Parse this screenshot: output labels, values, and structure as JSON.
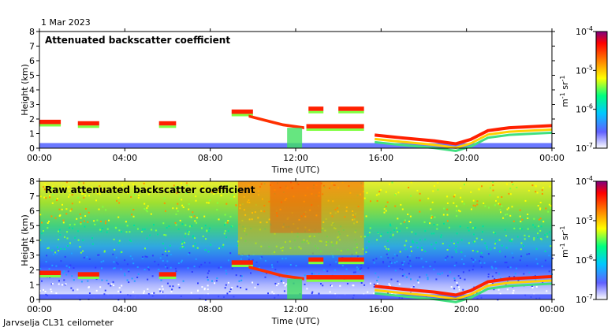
{
  "date_label": "1 Mar 2023",
  "footer_label": "Jarvselja CL31 ceilometer",
  "chart_data": [
    {
      "type": "heatmap",
      "title": "Attenuated backscatter coefficient",
      "xlabel": "Time (UTC)",
      "ylabel": "Height (km)",
      "x_ticks": [
        "00:00",
        "04:00",
        "08:00",
        "12:00",
        "16:00",
        "20:00",
        "00:00"
      ],
      "x_range_hours": [
        0,
        24
      ],
      "y_ticks": [
        "0",
        "1",
        "2",
        "3",
        "4",
        "5",
        "6",
        "7",
        "8"
      ],
      "ylim": [
        0,
        8
      ],
      "colorbar": {
        "scale": "log",
        "range": [
          1e-07,
          0.0001
        ],
        "ticks": [
          {
            "base": "10",
            "exp": "-4"
          },
          {
            "base": "10",
            "exp": "-5"
          },
          {
            "base": "10",
            "exp": "-6"
          },
          {
            "base": "10",
            "exp": "-7"
          }
        ],
        "unit": {
          "m": "m",
          "m_exp": "-1",
          "sr": "sr",
          "sr_exp": "-1"
        }
      },
      "features": [
        {
          "kind": "boundary_layer_blue",
          "x": [
            0,
            24
          ],
          "y": [
            0,
            0.35
          ]
        },
        {
          "kind": "cloud_base",
          "x": [
            0,
            1
          ],
          "y": [
            1.7,
            1.9
          ]
        },
        {
          "kind": "cloud_base",
          "x": [
            1.8,
            2.8
          ],
          "y": [
            1.6,
            1.8
          ]
        },
        {
          "kind": "cloud_base",
          "x": [
            5.6,
            6.4
          ],
          "y": [
            1.6,
            1.8
          ]
        },
        {
          "kind": "cloud_base",
          "x": [
            9.0,
            10.0
          ],
          "y": [
            2.4,
            2.6
          ]
        },
        {
          "kind": "cloud_base",
          "x": [
            10.0,
            12.5
          ],
          "y": [
            1.6,
            2.2
          ]
        },
        {
          "kind": "cloud_base",
          "x": [
            12.5,
            15.2
          ],
          "y": [
            1.4,
            1.6
          ]
        },
        {
          "kind": "cloud_base",
          "x": [
            12.6,
            13.3
          ],
          "y": [
            2.6,
            2.8
          ]
        },
        {
          "kind": "cloud_base",
          "x": [
            14.0,
            15.2
          ],
          "y": [
            2.6,
            2.8
          ]
        },
        {
          "kind": "cloud_base",
          "x": [
            15.7,
            24.0
          ],
          "y": [
            0.2,
            1.6
          ]
        }
      ],
      "colormap": [
        "#ffffff",
        "#5050ff",
        "#00c8ff",
        "#00ff80",
        "#ffff00",
        "#ff8000",
        "#ff0000",
        "#800080"
      ]
    },
    {
      "type": "heatmap",
      "title": "Raw attenuated backscatter coefficient",
      "xlabel": "Time (UTC)",
      "ylabel": "Height (km)",
      "x_ticks": [
        "00:00",
        "04:00",
        "08:00",
        "12:00",
        "16:00",
        "20:00",
        "00:00"
      ],
      "x_range_hours": [
        0,
        24
      ],
      "y_ticks": [
        "0",
        "1",
        "2",
        "3",
        "4",
        "5",
        "6",
        "7",
        "8"
      ],
      "ylim": [
        0,
        8
      ],
      "colorbar": {
        "scale": "log",
        "range": [
          1e-07,
          0.0001
        ],
        "ticks": [
          {
            "base": "10",
            "exp": "-4"
          },
          {
            "base": "10",
            "exp": "-5"
          },
          {
            "base": "10",
            "exp": "-6"
          },
          {
            "base": "10",
            "exp": "-7"
          }
        ],
        "unit": {
          "m": "m",
          "m_exp": "-1",
          "sr": "sr",
          "sr_exp": "-1"
        }
      },
      "colormap": [
        "#ffffff",
        "#5050ff",
        "#00c8ff",
        "#00ff80",
        "#ffff00",
        "#ff8000",
        "#ff0000",
        "#800080"
      ]
    }
  ]
}
